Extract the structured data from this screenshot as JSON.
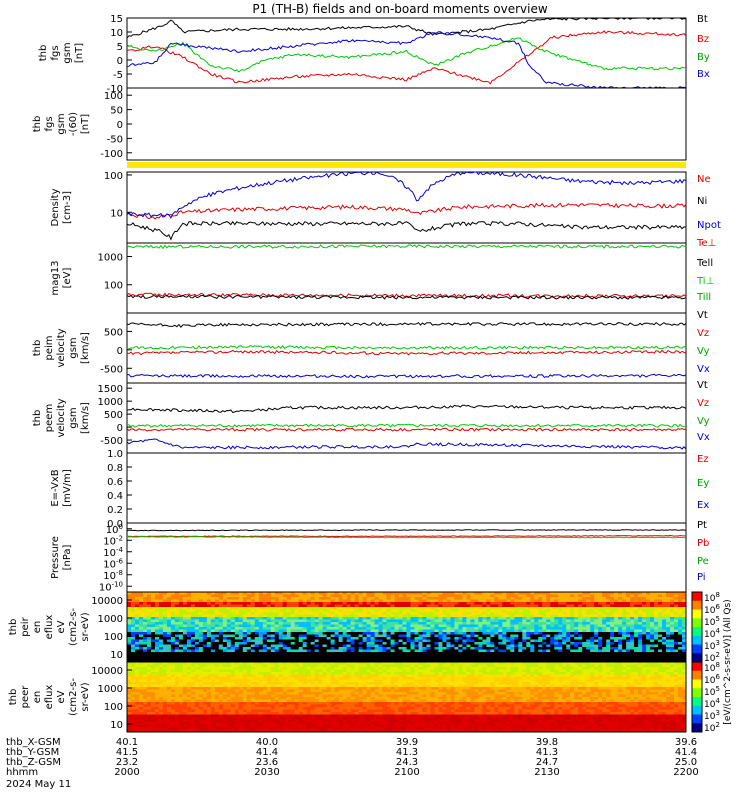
{
  "title": "P1 (TH-B) fields and on-board moments overview",
  "colors": {
    "black": "#000000",
    "red": "#e00000",
    "green": "#00c800",
    "blue": "#0000d0",
    "yellow": "#ffe800",
    "darkgreen": "#00a000"
  },
  "chart_data": [
    {
      "id": "fgs",
      "type": "line",
      "ylabel": [
        "thb",
        "fgs",
        "gsm",
        "[nT]"
      ],
      "ylim": [
        -10,
        15
      ],
      "yticks": [
        "15",
        "10",
        "5",
        "0",
        "-5",
        "-10"
      ],
      "ytick_values": [
        15,
        10,
        5,
        0,
        -5,
        -10
      ],
      "legend": [
        "Bt",
        "Bz",
        "By",
        "Bx"
      ],
      "series": [
        {
          "name": "Bt",
          "color": "black",
          "keypoints": [
            [
              0,
              8
            ],
            [
              0.06,
              12
            ],
            [
              0.08,
              14
            ],
            [
              0.1,
              10
            ],
            [
              0.2,
              11
            ],
            [
              0.3,
              11
            ],
            [
              0.5,
              12
            ],
            [
              0.55,
              9
            ],
            [
              0.65,
              11
            ],
            [
              0.72,
              14
            ],
            [
              0.75,
              14.5
            ],
            [
              0.85,
              15
            ],
            [
              1,
              15
            ]
          ]
        },
        {
          "name": "Bz",
          "color": "red",
          "keypoints": [
            [
              0,
              3
            ],
            [
              0.05,
              5
            ],
            [
              0.1,
              1
            ],
            [
              0.15,
              -5
            ],
            [
              0.2,
              -8
            ],
            [
              0.3,
              -6
            ],
            [
              0.4,
              -5
            ],
            [
              0.5,
              -7
            ],
            [
              0.55,
              -3
            ],
            [
              0.65,
              -8
            ],
            [
              0.72,
              2
            ],
            [
              0.76,
              8
            ],
            [
              0.85,
              10
            ],
            [
              1,
              9
            ]
          ]
        },
        {
          "name": "By",
          "color": "green",
          "keypoints": [
            [
              0,
              5
            ],
            [
              0.05,
              3
            ],
            [
              0.1,
              6
            ],
            [
              0.15,
              -2
            ],
            [
              0.2,
              -4
            ],
            [
              0.25,
              0
            ],
            [
              0.3,
              2
            ],
            [
              0.4,
              1
            ],
            [
              0.5,
              3
            ],
            [
              0.55,
              -2
            ],
            [
              0.6,
              2
            ],
            [
              0.7,
              8
            ],
            [
              0.75,
              3
            ],
            [
              0.85,
              -3
            ],
            [
              1,
              -3
            ]
          ]
        },
        {
          "name": "Bx",
          "color": "blue",
          "keypoints": [
            [
              0,
              -2
            ],
            [
              0.05,
              -1
            ],
            [
              0.08,
              6
            ],
            [
              0.12,
              5
            ],
            [
              0.2,
              3
            ],
            [
              0.3,
              5
            ],
            [
              0.4,
              7
            ],
            [
              0.5,
              6
            ],
            [
              0.55,
              10
            ],
            [
              0.65,
              8
            ],
            [
              0.7,
              6
            ],
            [
              0.72,
              -2
            ],
            [
              0.75,
              -8
            ],
            [
              0.85,
              -10
            ],
            [
              1,
              -10
            ]
          ]
        }
      ]
    },
    {
      "id": "fgs_gse",
      "type": "line",
      "ylabel": [
        "thb",
        "fgs",
        "gsm",
        "-(60)",
        "[nT]"
      ],
      "ylim": [
        -125,
        125
      ],
      "yticks": [
        "100",
        "50",
        "0",
        "-50",
        "-100"
      ],
      "ytick_values": [
        100,
        50,
        0,
        -50,
        -100
      ],
      "legend": [],
      "series": []
    },
    {
      "id": "density",
      "type": "line",
      "log": true,
      "ylabel": [
        "Density",
        "[cm-3]"
      ],
      "ylim": [
        1.5,
        120
      ],
      "yticks": [
        "100",
        "10"
      ],
      "ytick_values": [
        100,
        10
      ],
      "legend": [
        "Ne",
        "Ni",
        "Npot"
      ],
      "series": [
        {
          "name": "Ne",
          "color": "red",
          "keypoints": [
            [
              0,
              9
            ],
            [
              0.05,
              7
            ],
            [
              0.1,
              10
            ],
            [
              0.2,
              12
            ],
            [
              0.3,
              13
            ],
            [
              0.4,
              14
            ],
            [
              0.5,
              12
            ],
            [
              0.52,
              9
            ],
            [
              0.6,
              14
            ],
            [
              0.7,
              15
            ],
            [
              0.8,
              16
            ],
            [
              0.9,
              15
            ],
            [
              1,
              15
            ]
          ]
        },
        {
          "name": "Ni",
          "color": "black",
          "keypoints": [
            [
              0,
              5
            ],
            [
              0.06,
              3
            ],
            [
              0.08,
              2
            ],
            [
              0.1,
              5
            ],
            [
              0.2,
              5
            ],
            [
              0.3,
              5
            ],
            [
              0.4,
              5
            ],
            [
              0.5,
              5
            ],
            [
              0.52,
              3
            ],
            [
              0.6,
              5
            ],
            [
              0.7,
              5
            ],
            [
              0.8,
              4
            ],
            [
              0.9,
              4
            ],
            [
              1,
              4
            ]
          ]
        },
        {
          "name": "Npot",
          "color": "blue",
          "keypoints": [
            [
              0,
              9
            ],
            [
              0.08,
              8
            ],
            [
              0.15,
              30
            ],
            [
              0.25,
              60
            ],
            [
              0.4,
              110
            ],
            [
              0.45,
              120
            ],
            [
              0.52,
              20
            ],
            [
              0.6,
              120
            ],
            [
              0.7,
              100
            ],
            [
              0.8,
              70
            ],
            [
              0.9,
              60
            ],
            [
              1,
              70
            ]
          ]
        }
      ]
    },
    {
      "id": "temp",
      "type": "line",
      "log": true,
      "ylabel": [
        "mag13",
        "[eV]"
      ],
      "ylim": [
        10,
        3000
      ],
      "yticks": [
        "1000",
        "100"
      ],
      "ytick_values": [
        1000,
        100
      ],
      "legend": [
        "Te⊥",
        "Tell",
        "Ti⊥",
        "Till"
      ],
      "series": [
        {
          "name": "Ti⊥",
          "color": "green",
          "keypoints": [
            [
              0,
              2200
            ],
            [
              0.5,
              2300
            ],
            [
              1,
              2250
            ]
          ]
        },
        {
          "name": "Te⊥",
          "color": "red",
          "keypoints": [
            [
              0,
              45
            ],
            [
              0.5,
              42
            ],
            [
              1,
              40
            ]
          ]
        },
        {
          "name": "Tell",
          "color": "black",
          "keypoints": [
            [
              0,
              38
            ],
            [
              0.5,
              36
            ],
            [
              1,
              35
            ]
          ]
        }
      ]
    },
    {
      "id": "vi",
      "type": "line",
      "ylabel": [
        "thb",
        "peim",
        "velocity",
        "gsm",
        "[km/s]"
      ],
      "ylim": [
        -900,
        1000
      ],
      "yticks": [
        "500",
        "0",
        "-500"
      ],
      "ytick_values": [
        500,
        0,
        -500
      ],
      "legend": [
        "Vt",
        "Vz",
        "Vy",
        "Vx"
      ],
      "series": [
        {
          "name": "Vt",
          "color": "black",
          "keypoints": [
            [
              0,
              700
            ],
            [
              0.1,
              650
            ],
            [
              0.15,
              680
            ],
            [
              0.5,
              700
            ],
            [
              1,
              700
            ]
          ]
        },
        {
          "name": "Vz",
          "color": "red",
          "keypoints": [
            [
              0,
              -100
            ],
            [
              0.2,
              -50
            ],
            [
              0.5,
              -100
            ],
            [
              1,
              -50
            ]
          ]
        },
        {
          "name": "Vy",
          "color": "green",
          "keypoints": [
            [
              0,
              50
            ],
            [
              0.2,
              80
            ],
            [
              0.5,
              50
            ],
            [
              1,
              70
            ]
          ]
        },
        {
          "name": "Vx",
          "color": "blue",
          "keypoints": [
            [
              0,
              -700
            ],
            [
              0.5,
              -720
            ],
            [
              1,
              -700
            ]
          ]
        }
      ]
    },
    {
      "id": "ve",
      "type": "line",
      "ylabel": [
        "thb",
        "peem",
        "velocity",
        "gsm",
        "[km/s]"
      ],
      "ylim": [
        -1000,
        1700
      ],
      "yticks": [
        "1500",
        "1000",
        "500",
        "0",
        "-500"
      ],
      "ytick_values": [
        1500,
        1000,
        500,
        0,
        -500
      ],
      "legend": [
        "Vt",
        "Vz",
        "Vy",
        "Vx"
      ],
      "series": [
        {
          "name": "Vt",
          "color": "black",
          "keypoints": [
            [
              0,
              700
            ],
            [
              0.1,
              650
            ],
            [
              0.2,
              600
            ],
            [
              0.3,
              750
            ],
            [
              0.5,
              750
            ],
            [
              0.6,
              800
            ],
            [
              0.8,
              750
            ],
            [
              1,
              750
            ]
          ]
        },
        {
          "name": "Vz",
          "color": "red",
          "keypoints": [
            [
              0,
              -100
            ],
            [
              0.5,
              -100
            ],
            [
              1,
              -100
            ]
          ]
        },
        {
          "name": "Vy",
          "color": "green",
          "keypoints": [
            [
              0,
              50
            ],
            [
              0.5,
              60
            ],
            [
              1,
              50
            ]
          ]
        },
        {
          "name": "Vx",
          "color": "blue",
          "keypoints": [
            [
              0,
              -600
            ],
            [
              0.05,
              -500
            ],
            [
              0.1,
              -800
            ],
            [
              0.5,
              -750
            ],
            [
              0.52,
              -650
            ],
            [
              1,
              -800
            ]
          ]
        }
      ]
    },
    {
      "id": "efield",
      "type": "line",
      "ylabel": [
        "E=-VxB",
        "[mV/m]"
      ],
      "ylim": [
        0,
        1
      ],
      "yticks": [
        "1.0",
        "0.8",
        "0.6",
        "0.4",
        "0.2",
        "0.0"
      ],
      "ytick_values": [
        1,
        0.8,
        0.6,
        0.4,
        0.2,
        0
      ],
      "legend": [
        "Ez",
        "Ey",
        "Ex"
      ],
      "series": []
    },
    {
      "id": "pressure",
      "type": "line",
      "log": true,
      "ylabel": [
        "Pressure",
        "[nPa]"
      ],
      "ylim": [
        1e-11,
        10
      ],
      "yticks": [
        "10^0",
        "10^-2",
        "10^-4",
        "10^-6",
        "10^-8",
        "10^-10"
      ],
      "ytick_values": [
        1,
        0.01,
        0.0001,
        1e-06,
        1e-08,
        1e-10
      ],
      "legend": [
        "Pt",
        "Pb",
        "Pe",
        "Pi"
      ],
      "series": [
        {
          "name": "Pt",
          "color": "black",
          "keypoints": [
            [
              0,
              0.5
            ],
            [
              0.5,
              0.6
            ],
            [
              1,
              0.6
            ]
          ]
        },
        {
          "name": "Pb",
          "color": "red",
          "keypoints": [
            [
              0,
              0.05
            ],
            [
              0.5,
              0.05
            ],
            [
              1,
              0.06
            ]
          ]
        },
        {
          "name": "Pe",
          "color": "green",
          "keypoints": [
            [
              0,
              0.04
            ],
            [
              0.5,
              0.03
            ],
            [
              1,
              0.03
            ]
          ]
        }
      ]
    },
    {
      "id": "ion_spec",
      "type": "heatmap",
      "ylabel": [
        "thb",
        "peir",
        "en",
        "eflux",
        "eV",
        "(cm2-s-",
        "sr-eV)"
      ],
      "yticks": [
        "10000",
        "1000",
        "100",
        "10"
      ]
    },
    {
      "id": "elec_spec",
      "type": "heatmap",
      "ylabel": [
        "thb",
        "peer",
        "en",
        "eflux",
        "eV",
        "(cm2-s-",
        "sr-eV)"
      ],
      "yticks": [
        "10000",
        "1000",
        "100",
        "10"
      ]
    }
  ],
  "colorbar": {
    "top_ticks": [
      "10^8",
      "10^6",
      "10^5",
      "10^4",
      "10^3",
      "10^2"
    ],
    "bottom_ticks": [
      "10^8",
      "10^6",
      "10^5",
      "10^4",
      "10^3",
      "10^2"
    ],
    "label": "[eV/(cm^2-s-sr-eV)] (All Qs)"
  },
  "xaxis": {
    "rows": [
      {
        "label": "thb_X-GSM",
        "values": [
          "40.1",
          "40.0",
          "39.9",
          "39.8",
          "39.6"
        ]
      },
      {
        "label": "thb_Y-GSM",
        "values": [
          "41.5",
          "41.4",
          "41.3",
          "41.3",
          "41.4"
        ]
      },
      {
        "label": "thb_Z-GSM",
        "values": [
          "23.2",
          "23.6",
          "24.3",
          "24.7",
          "25.0"
        ]
      },
      {
        "label": "hhmm",
        "values": [
          "2000",
          "2030",
          "2100",
          "2130",
          "2200"
        ]
      }
    ],
    "date": "2024 May 11"
  }
}
